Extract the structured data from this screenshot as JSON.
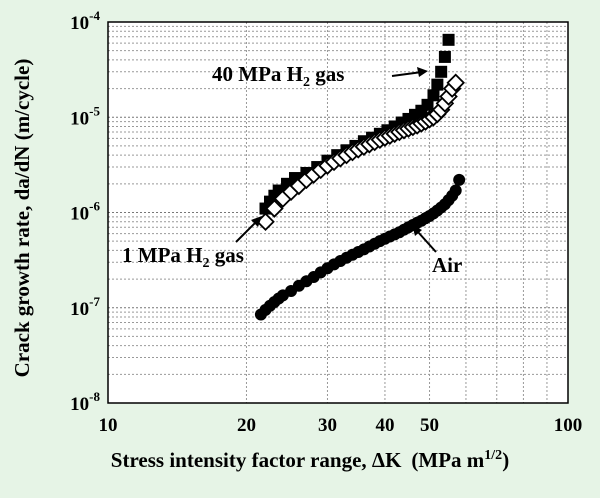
{
  "chart_data": {
    "type": "scatter",
    "xscale": "log",
    "yscale": "log",
    "xlim": [
      10,
      100
    ],
    "ylim": [
      1e-08,
      0.0001
    ],
    "grid": true,
    "xlabel": {
      "main": "Stress intensity factor range, ΔK",
      "unit": "(MPa m",
      "unit_sup": "1/2",
      "unit_close": ")"
    },
    "ylabel": "Crack growth rate, da/dN (m/cycle)",
    "x_ticks": [
      {
        "value": 10,
        "label": "10"
      },
      {
        "value": 20,
        "label": "20"
      },
      {
        "value": 30,
        "label": "30"
      },
      {
        "value": 40,
        "label": "40"
      },
      {
        "value": 50,
        "label": "50"
      },
      {
        "value": 100,
        "label": "100"
      }
    ],
    "y_ticks": [
      {
        "value": 1e-08,
        "base": "10",
        "exp": "-8"
      },
      {
        "value": 1e-07,
        "base": "10",
        "exp": "-7"
      },
      {
        "value": 1e-06,
        "base": "10",
        "exp": "-6"
      },
      {
        "value": 1e-05,
        "base": "10",
        "exp": "-5"
      },
      {
        "value": 0.0001,
        "base": "10",
        "exp": "-4"
      }
    ],
    "series": [
      {
        "label_parts": [
          "40 MPa H",
          "2",
          " gas"
        ],
        "marker": "square-filled",
        "x": [
          22.0,
          22.5,
          23.0,
          23.5,
          24.5,
          25.5,
          27.0,
          28.5,
          30.0,
          31.5,
          33.0,
          34.5,
          36.0,
          37.5,
          39.0,
          40.5,
          42.0,
          43.5,
          45.0,
          46.5,
          48.0,
          49.5,
          51.0,
          52.0,
          53.0,
          54.0,
          55.0
        ],
        "y": [
          1.1e-06,
          1.3e-06,
          1.5e-06,
          1.7e-06,
          2e-06,
          2.3e-06,
          2.6e-06,
          3e-06,
          3.5e-06,
          4e-06,
          4.5e-06,
          5e-06,
          5.6e-06,
          6.1e-06,
          6.7e-06,
          7.3e-06,
          8e-06,
          8.8e-06,
          9.6e-06,
          1.06e-05,
          1.17e-05,
          1.35e-05,
          1.7e-05,
          2.2e-05,
          3e-05,
          4.3e-05,
          6.5e-05
        ]
      },
      {
        "label_parts": [
          "1 MPa H",
          "2",
          " gas"
        ],
        "marker": "diamond-open",
        "x": [
          22.0,
          23.0,
          24.0,
          25.0,
          26.0,
          27.0,
          28.0,
          29.0,
          30.0,
          31.0,
          32.0,
          33.0,
          34.0,
          35.0,
          36.0,
          37.0,
          38.0,
          39.0,
          40.0,
          41.0,
          42.0,
          43.0,
          44.0,
          45.0,
          46.0,
          47.0,
          48.0,
          49.0,
          50.0,
          51.0,
          52.0,
          53.0,
          54.0,
          55.0,
          56.0,
          57.0
        ],
        "y": [
          8e-07,
          1.1e-06,
          1.4e-06,
          1.65e-06,
          1.9e-06,
          2.2e-06,
          2.5e-06,
          2.8e-06,
          3.1e-06,
          3.4e-06,
          3.7e-06,
          4e-06,
          4.3e-06,
          4.6e-06,
          4.9e-06,
          5.2e-06,
          5.5e-06,
          5.8e-06,
          6.1e-06,
          6.4e-06,
          6.7e-06,
          7e-06,
          7.3e-06,
          7.6e-06,
          7.9e-06,
          8.2e-06,
          8.6e-06,
          9e-06,
          9.5e-06,
          1e-05,
          1.08e-05,
          1.2e-05,
          1.4e-05,
          1.65e-05,
          2e-05,
          2.3e-05
        ]
      },
      {
        "label": "Air",
        "marker": "circle-filled",
        "x": [
          21.5,
          22.0,
          22.5,
          23.0,
          23.5,
          24.0,
          25.0,
          26.0,
          27.0,
          28.0,
          29.0,
          30.0,
          31.0,
          32.0,
          33.0,
          34.0,
          35.0,
          36.0,
          37.0,
          38.0,
          39.0,
          40.0,
          41.0,
          42.0,
          43.0,
          44.0,
          45.0,
          46.0,
          47.0,
          48.0,
          49.0,
          50.0,
          51.0,
          52.0,
          53.0,
          54.0,
          55.0,
          56.0,
          57.0,
          58.0
        ],
        "y": [
          8.5e-08,
          9.5e-08,
          1.05e-07,
          1.15e-07,
          1.25e-07,
          1.35e-07,
          1.5e-07,
          1.7e-07,
          1.9e-07,
          2.1e-07,
          2.35e-07,
          2.6e-07,
          2.85e-07,
          3.1e-07,
          3.35e-07,
          3.6e-07,
          3.85e-07,
          4.1e-07,
          4.4e-07,
          4.7e-07,
          5e-07,
          5.3e-07,
          5.6e-07,
          5.9e-07,
          6.2e-07,
          6.6e-07,
          7e-07,
          7.4e-07,
          7.8e-07,
          8.2e-07,
          8.7e-07,
          9.2e-07,
          9.8e-07,
          1.05e-06,
          1.13e-06,
          1.22e-06,
          1.35e-06,
          1.5e-06,
          1.7e-06,
          2.2e-06
        ]
      }
    ]
  }
}
